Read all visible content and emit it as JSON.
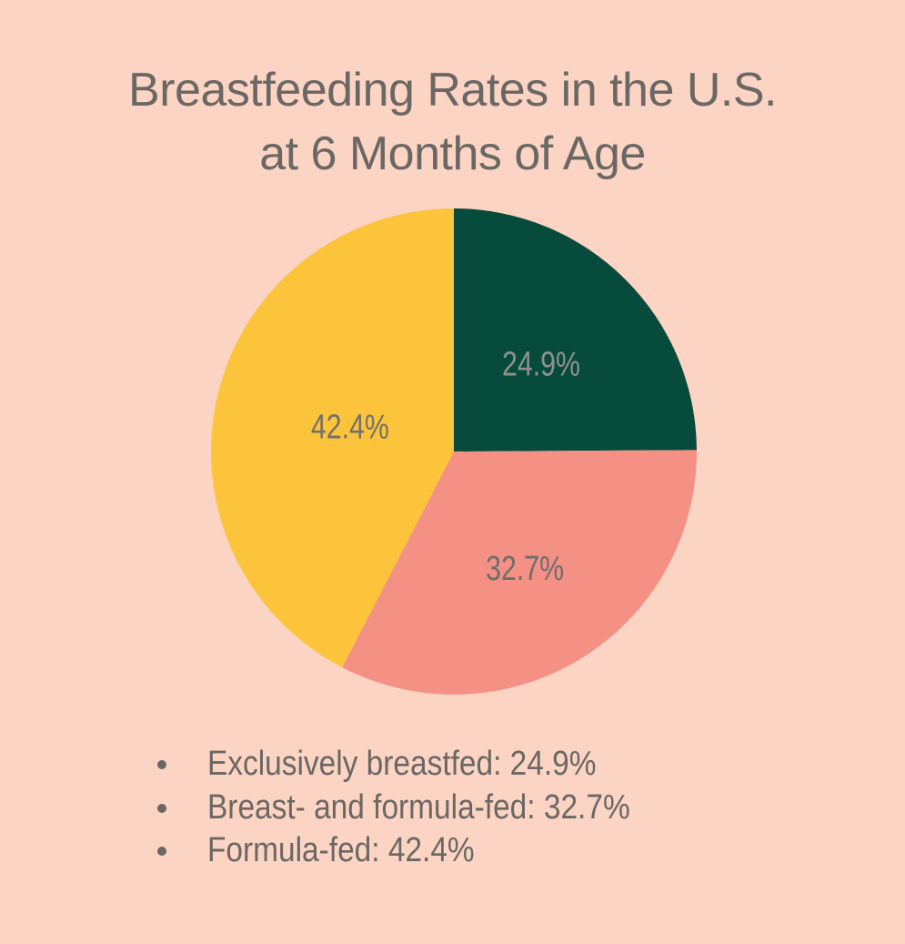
{
  "page": {
    "background_color": "#fbd4c4",
    "text_color": "#6b6764"
  },
  "title": {
    "line1": "Breastfeeding Rates in the U.S.",
    "line2": "at 6 Months of Age"
  },
  "chart_data": {
    "type": "pie",
    "title": "Breastfeeding Rates in the U.S. at 6 Months of Age",
    "start_angle": "top",
    "direction": "clockwise",
    "legend_position": "bottom-left-bullet-list",
    "slices": [
      {
        "label": "Exclusively breastfed",
        "value": 24.9,
        "display_value": "24.9%",
        "color": "#064b3c",
        "label_color": "#90918e",
        "label_radius_frac": 0.51
      },
      {
        "label": "Breast- and formula-fed",
        "value": 32.7,
        "display_value": "32.7%",
        "color": "#f49084",
        "label_color": "#6c6e6d",
        "label_radius_frac": 0.56
      },
      {
        "label": "Formula-fed",
        "value": 42.4,
        "display_value": "42.4%",
        "color": "#fcc43a",
        "label_color": "#74706a",
        "label_radius_frac": 0.44
      }
    ]
  },
  "legend": {
    "items": [
      "Exclusively breastfed: 24.9%",
      "Breast- and formula-fed: 32.7%",
      "Formula-fed: 42.4%"
    ]
  }
}
